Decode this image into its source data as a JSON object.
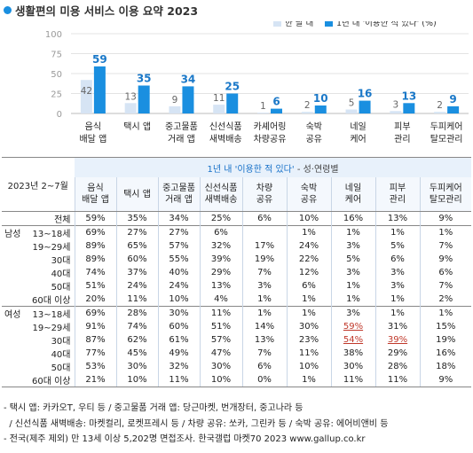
{
  "title": "생활편의 미용 서비스 이용 요약 2023",
  "chart_data": {
    "type": "bar",
    "categories": [
      [
        "음식",
        "배달 앱"
      ],
      [
        "택시 앱"
      ],
      [
        "중고물품",
        "거래 앱"
      ],
      [
        "신선식품",
        "새벽배송"
      ],
      [
        "카셰어링",
        "차량공유"
      ],
      [
        "숙박",
        "공유"
      ],
      [
        "네일",
        "케어"
      ],
      [
        "피부",
        "관리"
      ],
      [
        "두피케어",
        "탈모관리"
      ]
    ],
    "series": [
      {
        "name": "한 달 내",
        "color": "#d6e4f4",
        "values": [
          42,
          13,
          9,
          11,
          1,
          2,
          5,
          3,
          2
        ]
      },
      {
        "name": "1년 내 '이용한 적 있다' (%)",
        "color": "#1a8fe0",
        "values": [
          59,
          35,
          34,
          25,
          6,
          10,
          16,
          13,
          9
        ]
      }
    ],
    "ylim": [
      0,
      100
    ],
    "yticks": [
      0,
      25,
      50,
      75,
      100
    ],
    "grid": true,
    "legend": "top-right"
  },
  "table": {
    "period": "2023년 2~7월",
    "header_title": "1년 내 '이용한 적 있다'",
    "header_suffix": " - 성·연령별",
    "columns": [
      [
        "음식",
        "배달 앱"
      ],
      [
        "택시 앱"
      ],
      [
        "중고물품",
        "거래 앱"
      ],
      [
        "신선식품",
        "새벽배송"
      ],
      [
        "차량",
        "공유"
      ],
      [
        "숙박",
        "공유"
      ],
      [
        "네일",
        "케어"
      ],
      [
        "피부",
        "관리"
      ],
      [
        "두피케어",
        "탈모관리"
      ]
    ],
    "rows": [
      {
        "group": "",
        "label": "전체",
        "values": [
          "59%",
          "35%",
          "34%",
          "25%",
          "6%",
          "10%",
          "16%",
          "13%",
          "9%"
        ]
      },
      {
        "group": "남성",
        "label": "13~18세",
        "values": [
          "69%",
          "27%",
          "27%",
          "6%",
          "",
          "1%",
          "1%",
          "1%",
          "1%"
        ]
      },
      {
        "group": "",
        "label": "19~29세",
        "values": [
          "89%",
          "65%",
          "57%",
          "32%",
          "17%",
          "24%",
          "3%",
          "5%",
          "7%"
        ]
      },
      {
        "group": "",
        "label": "30대",
        "values": [
          "89%",
          "60%",
          "55%",
          "39%",
          "19%",
          "22%",
          "5%",
          "6%",
          "9%"
        ]
      },
      {
        "group": "",
        "label": "40대",
        "values": [
          "74%",
          "37%",
          "40%",
          "29%",
          "7%",
          "12%",
          "3%",
          "3%",
          "6%"
        ]
      },
      {
        "group": "",
        "label": "50대",
        "values": [
          "51%",
          "24%",
          "24%",
          "13%",
          "3%",
          "6%",
          "1%",
          "3%",
          "7%"
        ]
      },
      {
        "group": "",
        "label": "60대 이상",
        "values": [
          "20%",
          "11%",
          "10%",
          "4%",
          "1%",
          "1%",
          "1%",
          "1%",
          "2%"
        ]
      },
      {
        "group": "여성",
        "label": "13~18세",
        "values": [
          "69%",
          "28%",
          "30%",
          "11%",
          "1%",
          "1%",
          "3%",
          "1%",
          "1%"
        ]
      },
      {
        "group": "",
        "label": "19~29세",
        "values": [
          "91%",
          "74%",
          "60%",
          "51%",
          "14%",
          "30%",
          "59%",
          "31%",
          "15%"
        ]
      },
      {
        "group": "",
        "label": "30대",
        "values": [
          "87%",
          "62%",
          "61%",
          "57%",
          "13%",
          "23%",
          "54%",
          "39%",
          "19%"
        ]
      },
      {
        "group": "",
        "label": "40대",
        "values": [
          "77%",
          "45%",
          "49%",
          "47%",
          "7%",
          "11%",
          "38%",
          "29%",
          "16%"
        ]
      },
      {
        "group": "",
        "label": "50대",
        "values": [
          "53%",
          "30%",
          "32%",
          "30%",
          "6%",
          "10%",
          "30%",
          "28%",
          "18%"
        ]
      },
      {
        "group": "",
        "label": "60대 이상",
        "values": [
          "21%",
          "10%",
          "11%",
          "10%",
          "0%",
          "1%",
          "11%",
          "11%",
          "9%"
        ]
      }
    ],
    "highlight": [
      [
        8,
        6
      ],
      [
        9,
        6
      ],
      [
        9,
        7
      ]
    ],
    "highlight_color": "#c0392b"
  },
  "notes": [
    "- 택시 앱: 카카오T, 우티 등 / 중고물품 거래 앱: 당근마켓, 번개장터, 중고나라 등",
    "  / 신선식품 새벽배송: 마켓컬리, 로켓프레시 등 / 차량 공유: 쏘카, 그린카 등 / 숙박 공유: 에어비앤비 등",
    "- 전국(제주 제외) 만 13세 이상 5,202명 면접조사. 한국갤럽 마켓70 2023 www.gallup.co.kr"
  ]
}
